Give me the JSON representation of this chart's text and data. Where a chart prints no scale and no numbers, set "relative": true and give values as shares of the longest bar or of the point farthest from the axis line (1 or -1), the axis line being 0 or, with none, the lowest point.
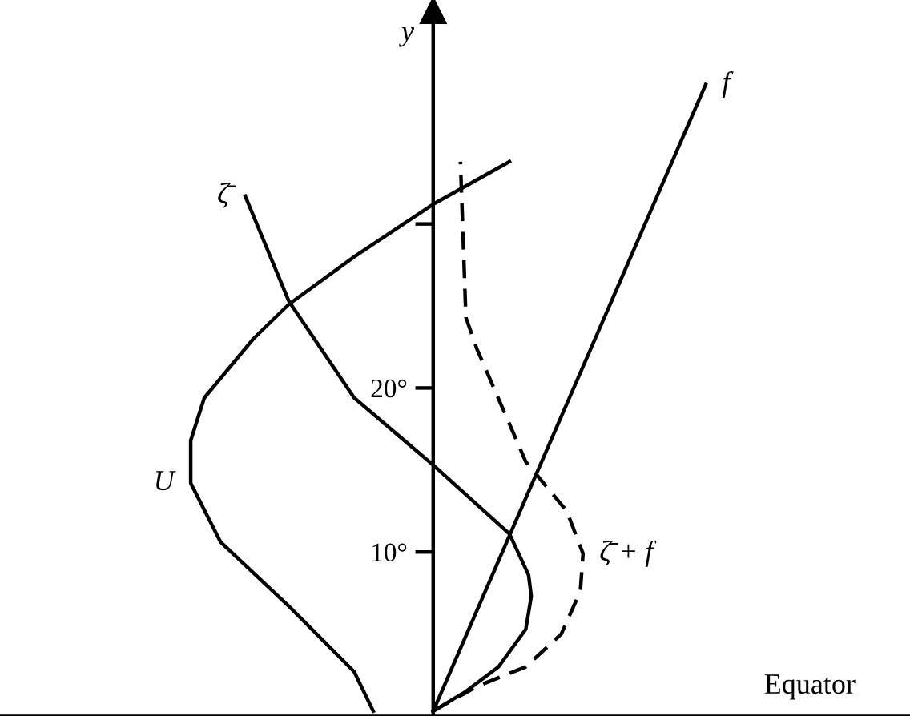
{
  "chart_data": {
    "type": "line",
    "orientation": "horizontal",
    "relative": true,
    "ylabel": "y",
    "ylim": [
      0,
      43
    ],
    "yticks": [
      {
        "value": 10,
        "label": "10°"
      },
      {
        "value": 20,
        "label": "20°"
      },
      {
        "value": 30,
        "label": null
      }
    ],
    "tick_labels": "y",
    "grid": false,
    "legend": false,
    "marker": "none",
    "annotations": [
      "Equator"
    ],
    "series": [
      {
        "name": "U",
        "color": "#000000",
        "line_style": "solid",
        "x": [
          0.3,
          2.7,
          6.7,
          10.6,
          14.2,
          16.8,
          19.4,
          23.0,
          25.1,
          28.0,
          31.2,
          33.8
        ],
        "values": [
          -0.22,
          -0.29,
          -0.53,
          -0.78,
          -0.89,
          -0.89,
          -0.84,
          -0.66,
          -0.53,
          -0.29,
          0,
          0.28
        ]
      },
      {
        "name": "ζ̄",
        "color": "#000000",
        "line_style": "solid",
        "x": [
          0.3,
          1.5,
          3.0,
          5.3,
          7.3,
          8.6,
          11.1,
          15.3,
          19.4,
          25.3,
          31.7
        ],
        "values": [
          0,
          0.12,
          0.24,
          0.34,
          0.36,
          0.35,
          0.28,
          0,
          -0.29,
          -0.53,
          -0.69
        ]
      },
      {
        "name": "f",
        "color": "#000000",
        "line_style": "solid",
        "x": [
          0.3,
          38.5
        ],
        "values": [
          0,
          1
        ]
      },
      {
        "name": "ζ̄ + f",
        "color": "#000000",
        "line_style": "dashed",
        "x": [
          0.3,
          1.8,
          3.0,
          5.0,
          7.6,
          9.9,
          12.5,
          15.5,
          22.4,
          24.3,
          33.8
        ],
        "values": [
          0,
          0.16,
          0.34,
          0.47,
          0.54,
          0.55,
          0.49,
          0.34,
          0.16,
          0.12,
          0.1
        ]
      }
    ]
  }
}
